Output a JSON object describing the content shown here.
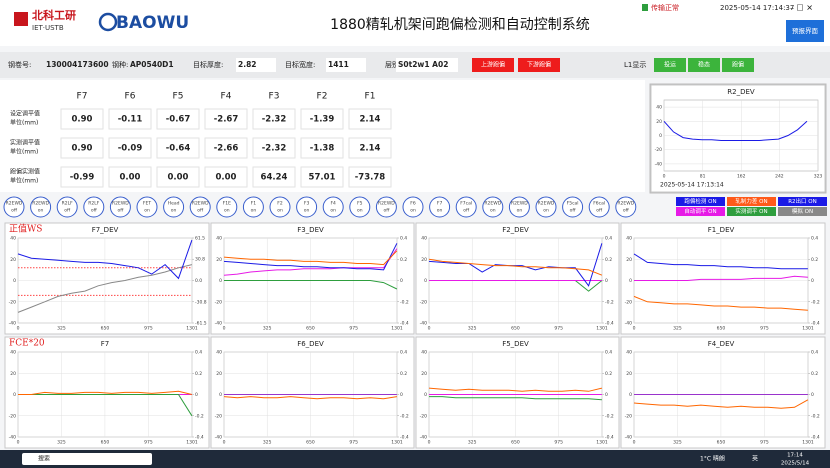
{
  "header": {
    "logo_cn": "北科工研",
    "logo_en": "IET·USTB",
    "brand": "BAOWU",
    "title": "1880精轧机架间跑偏检测和自动控制系统",
    "status": "传输正常",
    "datetime": "2025-05-14 17:14:37",
    "forecast_button": "预报界面"
  },
  "info": {
    "fields": [
      {
        "label": "钢卷号:",
        "value": "130004173600"
      },
      {
        "label": "钢种:",
        "value": "AP0540D1"
      },
      {
        "label": "目标厚度:",
        "value": "2.82"
      },
      {
        "label": "目标宽度:",
        "value": "1411"
      },
      {
        "label": "层别:",
        "value": "S0t2w1 A02"
      }
    ],
    "alarm_buttons": [
      "上游跑偏",
      "下游跑偏"
    ],
    "l1_label": "L1显示",
    "l1_buttons": [
      "投运",
      "稳态",
      "跑偏"
    ]
  },
  "table": {
    "columns": [
      "F7",
      "F6",
      "F5",
      "F4",
      "F3",
      "F2",
      "F1"
    ],
    "rows": [
      {
        "label": [
          "设定调平值",
          "单位(mm)"
        ],
        "values": [
          "0.90",
          "-0.11",
          "-0.67",
          "-2.67",
          "-2.32",
          "-1.39",
          "2.14"
        ]
      },
      {
        "label": [
          "实测调平值",
          "单位(mm)"
        ],
        "values": [
          "0.90",
          "-0.09",
          "-0.64",
          "-2.66",
          "-2.32",
          "-1.38",
          "2.14"
        ]
      },
      {
        "label": [
          "跑偏实测值",
          "单位(mm)"
        ],
        "values": [
          "-0.99",
          "0.00",
          "0.00",
          "0.00",
          "64.24",
          "57.01",
          "-73.78"
        ]
      }
    ]
  },
  "switches": [
    {
      "name": "R2EWD",
      "state": "off"
    },
    {
      "name": "R2EWD",
      "state": "on"
    },
    {
      "name": "R2LF",
      "state": "off"
    },
    {
      "name": "R2LF",
      "state": "off"
    },
    {
      "name": "R2EWD",
      "state": "off"
    },
    {
      "name": "FET",
      "state": "on"
    },
    {
      "name": "Head",
      "state": "on"
    },
    {
      "name": "R2EWD",
      "state": "off"
    },
    {
      "name": "F1E",
      "state": "on"
    },
    {
      "name": "F1",
      "state": "on"
    },
    {
      "name": "F2",
      "state": "on"
    },
    {
      "name": "F3",
      "state": "on"
    },
    {
      "name": "F4",
      "state": "on"
    },
    {
      "name": "F5",
      "state": "on"
    },
    {
      "name": "R2EWD",
      "state": "off"
    },
    {
      "name": "F6",
      "state": "on"
    },
    {
      "name": "F7",
      "state": "on"
    },
    {
      "name": "F7cal",
      "state": "off"
    },
    {
      "name": "R2EWD",
      "state": "on"
    },
    {
      "name": "R2EWD",
      "state": "on"
    },
    {
      "name": "R2EWD",
      "state": "on"
    },
    {
      "name": "F5cal",
      "state": "off"
    },
    {
      "name": "F6cal",
      "state": "off"
    },
    {
      "name": "R2EWD",
      "state": "off"
    }
  ],
  "legend": [
    {
      "label": "跑偏检测 ON",
      "color": "#1a1ae6"
    },
    {
      "label": "轧制力差 ON",
      "color": "#ff5a1a"
    },
    {
      "label": "R2出口 ON",
      "color": "#1a1ae6"
    },
    {
      "label": "自动调平 ON",
      "color": "#e61ae6"
    },
    {
      "label": "实测调平 ON",
      "color": "#2e9e3e"
    },
    {
      "label": "模拟 ON",
      "color": "#888888"
    }
  ],
  "chart_data": [
    {
      "type": "line",
      "title": "R2_DEV",
      "timestamp": "2025-05-14 17:13:14",
      "x": [
        0,
        20,
        40,
        60,
        80,
        100,
        120,
        140,
        160,
        180,
        200,
        220,
        240,
        260,
        280,
        300
      ],
      "xlim": [
        0,
        323
      ],
      "xticks": [
        0,
        81,
        162,
        242,
        323
      ],
      "ylim": [
        -50,
        50
      ],
      "yticks": [
        40,
        20,
        0,
        -20,
        -40
      ],
      "grid": true,
      "series": [
        {
          "color": "#1a1ae6",
          "values": [
            20,
            5,
            -3,
            -5,
            -6,
            -6,
            -7,
            -7,
            -7,
            -7,
            -7,
            -6,
            -5,
            0,
            8,
            20
          ]
        }
      ]
    },
    {
      "type": "line",
      "title": "F7_DEV",
      "annotation": "正值WS",
      "x": [
        0,
        100,
        200,
        300,
        400,
        500,
        600,
        700,
        800,
        900,
        1000,
        1100,
        1200,
        1300
      ],
      "xlim": [
        0,
        1301
      ],
      "xticks": [
        0,
        325,
        650,
        975,
        1301
      ],
      "ylim": [
        -40,
        40
      ],
      "yticks": [
        40,
        20,
        0,
        -20,
        -40
      ],
      "y2lim": [
        -61.5,
        61.5
      ],
      "y2ticks": [
        61.5,
        30.8,
        {
          "value": 0,
          "label": "0.0"
        },
        -30.8,
        -61.5
      ],
      "grid": true,
      "series": [
        {
          "color": "#ff4444",
          "style": "dotted",
          "values": [
            12,
            12,
            12,
            12,
            12,
            12,
            12,
            12,
            12,
            12,
            12,
            12,
            12,
            12
          ]
        },
        {
          "color": "#ff4444",
          "style": "dotted",
          "values": [
            -14,
            -14,
            -14,
            -14,
            -14,
            -14,
            -14,
            -14,
            -14,
            -14,
            -14,
            -14,
            -14,
            -14
          ]
        },
        {
          "color": "#888888",
          "values": [
            -30,
            -25,
            -20,
            -15,
            -12,
            -10,
            -5,
            -2,
            0,
            3,
            5,
            8,
            12,
            15
          ]
        },
        {
          "color": "#1a1ae6",
          "values": [
            25,
            21,
            20,
            19,
            18,
            17,
            17,
            16,
            14,
            12,
            6,
            15,
            2,
            38
          ]
        }
      ]
    },
    {
      "type": "line",
      "title": "F3_DEV",
      "x": [
        0,
        100,
        200,
        300,
        400,
        500,
        600,
        700,
        800,
        900,
        1000,
        1100,
        1200,
        1300
      ],
      "xlim": [
        0,
        1301
      ],
      "xticks": [
        0,
        325,
        650,
        975,
        1301
      ],
      "ylim": [
        -40,
        40
      ],
      "yticks": [
        40,
        20,
        0,
        -20,
        -40
      ],
      "y2lim": [
        -0.4,
        0.4
      ],
      "y2ticks": [
        0.4,
        0.2,
        0,
        -0.2,
        -0.4
      ],
      "grid": true,
      "series": [
        {
          "color": "#2e9e3e",
          "values": [
            0,
            0,
            0,
            0,
            0,
            0,
            0,
            0,
            0,
            0,
            0,
            0,
            -2,
            -8
          ]
        },
        {
          "color": "#e61ae6",
          "values": [
            5,
            6,
            8,
            9,
            10,
            10,
            11,
            11,
            11,
            12,
            12,
            12,
            12,
            30
          ]
        },
        {
          "color": "#1a1ae6",
          "values": [
            18,
            17,
            16,
            15,
            14,
            14,
            13,
            13,
            12,
            12,
            11,
            11,
            10,
            35
          ]
        },
        {
          "color": "#ff6600",
          "values": [
            22,
            21,
            20,
            20,
            19,
            19,
            18,
            18,
            17,
            17,
            16,
            16,
            15,
            28
          ]
        }
      ]
    },
    {
      "type": "line",
      "title": "F2_DEV",
      "x": [
        0,
        100,
        200,
        300,
        400,
        500,
        600,
        700,
        800,
        900,
        1000,
        1100,
        1200,
        1300
      ],
      "xlim": [
        0,
        1301
      ],
      "xticks": [
        0,
        325,
        650,
        975,
        1301
      ],
      "ylim": [
        -40,
        40
      ],
      "yticks": [
        40,
        20,
        0,
        -20,
        -40
      ],
      "y2lim": [
        -0.4,
        0.4
      ],
      "y2ticks": [
        0.4,
        0.2,
        0,
        -0.2,
        -0.4
      ],
      "grid": true,
      "series": [
        {
          "color": "#2e9e3e",
          "values": [
            0,
            0,
            0,
            0,
            0,
            0,
            0,
            0,
            0,
            0,
            0,
            0,
            -10,
            0
          ]
        },
        {
          "color": "#e61ae6",
          "values": [
            0,
            0,
            0,
            0,
            0,
            0,
            0,
            0,
            0,
            0,
            0,
            0,
            0,
            0
          ]
        },
        {
          "color": "#1a1ae6",
          "values": [
            18,
            17,
            16,
            16,
            8,
            15,
            14,
            14,
            10,
            13,
            12,
            12,
            -5,
            35
          ]
        },
        {
          "color": "#ff6600",
          "values": [
            20,
            18,
            17,
            16,
            15,
            14,
            14,
            13,
            13,
            12,
            12,
            11,
            10,
            5
          ]
        }
      ]
    },
    {
      "type": "line",
      "title": "F1_DEV",
      "x": [
        0,
        100,
        200,
        300,
        400,
        500,
        600,
        700,
        800,
        900,
        1000,
        1100,
        1200,
        1300
      ],
      "xlim": [
        0,
        1301
      ],
      "xticks": [
        0,
        325,
        650,
        975,
        1301
      ],
      "ylim": [
        -40,
        40
      ],
      "yticks": [
        40,
        20,
        0,
        -20,
        -40
      ],
      "y2lim": [
        -0.4,
        0.4
      ],
      "y2ticks": [
        0.4,
        0.2,
        0,
        -0.2,
        -0.4
      ],
      "grid": true,
      "series": [
        {
          "color": "#e61ae6",
          "values": [
            0,
            0,
            0,
            0,
            0,
            1,
            1,
            1,
            1,
            2,
            2,
            2,
            4,
            3
          ]
        },
        {
          "color": "#ff6600",
          "values": [
            -15,
            -20,
            -21,
            -22,
            -22,
            -23,
            -24,
            -24,
            -25,
            -25,
            -26,
            -26,
            -27,
            -28
          ]
        },
        {
          "color": "#1a1ae6",
          "values": [
            25,
            17,
            16,
            15,
            15,
            14,
            14,
            13,
            13,
            12,
            12,
            11,
            11,
            11
          ]
        }
      ]
    },
    {
      "type": "line",
      "title": "F7",
      "annotation": "FCE*20",
      "x": [
        0,
        100,
        200,
        300,
        400,
        500,
        600,
        700,
        800,
        900,
        1000,
        1100,
        1200,
        1300
      ],
      "xlim": [
        0,
        1301
      ],
      "xticks": [
        0,
        325,
        650,
        975,
        1301
      ],
      "ylim": [
        -40,
        40
      ],
      "yticks": [
        40,
        20,
        0,
        -20,
        -40
      ],
      "y2lim": [
        -0.4,
        0.4
      ],
      "y2ticks": [
        0.4,
        0.2,
        0,
        -0.2,
        -0.4
      ],
      "grid": true,
      "series": [
        {
          "color": "#e61ae6",
          "values": [
            0,
            0,
            0,
            0,
            0,
            0,
            0,
            0,
            0,
            0,
            0,
            0,
            0,
            0
          ]
        },
        {
          "color": "#2e9e3e",
          "values": [
            0,
            0,
            0,
            0,
            0,
            0,
            0,
            0,
            0,
            0,
            0,
            0,
            0,
            -20
          ]
        },
        {
          "color": "#ff6600",
          "values": [
            0,
            0,
            2,
            1,
            1,
            2,
            2,
            1,
            2,
            2,
            1,
            2,
            3,
            0
          ]
        }
      ]
    },
    {
      "type": "line",
      "title": "F6_DEV",
      "x": [
        0,
        100,
        200,
        300,
        400,
        500,
        600,
        700,
        800,
        900,
        1000,
        1100,
        1200,
        1300
      ],
      "xlim": [
        0,
        1301
      ],
      "xticks": [
        0,
        325,
        650,
        975,
        1301
      ],
      "ylim": [
        -40,
        40
      ],
      "yticks": [
        40,
        20,
        0,
        -20,
        -40
      ],
      "y2lim": [
        -0.4,
        0.4
      ],
      "y2ticks": [
        0.4,
        0.2,
        0,
        -0.2,
        -0.4
      ],
      "grid": true,
      "series": [
        {
          "color": "#9933cc",
          "values": [
            0,
            0,
            0,
            0,
            0,
            0,
            0,
            0,
            0,
            0,
            0,
            0,
            0,
            0
          ]
        },
        {
          "color": "#ff6600",
          "values": [
            -2,
            -3,
            -2,
            -3,
            -3,
            -2,
            -3,
            -4,
            -3,
            -3,
            -4,
            -3,
            -4,
            -2
          ]
        }
      ]
    },
    {
      "type": "line",
      "title": "F5_DEV",
      "x": [
        0,
        100,
        200,
        300,
        400,
        500,
        600,
        700,
        800,
        900,
        1000,
        1100,
        1200,
        1300
      ],
      "xlim": [
        0,
        1301
      ],
      "xticks": [
        0,
        325,
        650,
        975,
        1301
      ],
      "ylim": [
        -40,
        40
      ],
      "yticks": [
        40,
        20,
        0,
        -20,
        -40
      ],
      "y2lim": [
        -0.4,
        0.4
      ],
      "y2ticks": [
        0.4,
        0.2,
        0,
        -0.2,
        -0.4
      ],
      "grid": true,
      "series": [
        {
          "color": "#2e9e3e",
          "values": [
            -2,
            -2,
            -3,
            -3,
            -3,
            -3,
            -3,
            -3,
            -4,
            -4,
            -4,
            -4,
            -4,
            -5
          ]
        },
        {
          "color": "#e61ae6",
          "values": [
            0,
            0,
            0,
            0,
            0,
            0,
            0,
            0,
            0,
            0,
            0,
            0,
            0,
            0
          ]
        },
        {
          "color": "#ff6600",
          "values": [
            6,
            5,
            4,
            5,
            4,
            4,
            4,
            3,
            4,
            3,
            3,
            4,
            3,
            6
          ]
        }
      ]
    },
    {
      "type": "line",
      "title": "F4_DEV",
      "x": [
        0,
        100,
        200,
        300,
        400,
        500,
        600,
        700,
        800,
        900,
        1000,
        1100,
        1200,
        1300
      ],
      "xlim": [
        0,
        1301
      ],
      "xticks": [
        0,
        325,
        650,
        975,
        1301
      ],
      "ylim": [
        -40,
        40
      ],
      "yticks": [
        40,
        20,
        0,
        -20,
        -40
      ],
      "y2lim": [
        -0.4,
        0.4
      ],
      "y2ticks": [
        0.4,
        0.2,
        0,
        -0.2,
        -0.4
      ],
      "grid": true,
      "series": [
        {
          "color": "#ff6600",
          "values": [
            -8,
            -9,
            -10,
            -10,
            -11,
            -10,
            -11,
            -12,
            -11,
            -12,
            -12,
            -13,
            -12,
            -5
          ]
        },
        {
          "color": "#9933cc",
          "values": [
            0,
            0,
            0,
            0,
            0,
            0,
            0,
            0,
            0,
            0,
            0,
            0,
            0,
            0
          ]
        }
      ]
    }
  ],
  "taskbar": {
    "search": "搜索",
    "weather": "1°C 晴朗",
    "ime": "英",
    "time": "17:14",
    "date": "2025/5/14"
  }
}
